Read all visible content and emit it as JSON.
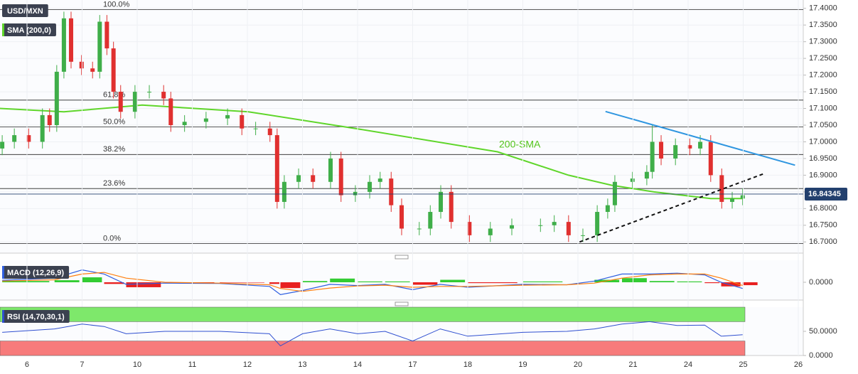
{
  "chart_data": [
    {
      "type": "candlestick",
      "title": "USD/MXN",
      "xlim": [
        -0.49,
        14.09
      ],
      "ylim": [
        16.675,
        17.425
      ],
      "yticks": [
        {
          "value": 16.7,
          "label": "16.7000"
        },
        {
          "value": 16.75,
          "label": "16.7500"
        },
        {
          "value": 16.8,
          "label": "16.8000"
        },
        {
          "value": 16.85,
          "label": "16.8500"
        },
        {
          "value": 16.9,
          "label": "16.9000"
        },
        {
          "value": 16.95,
          "label": "16.9500"
        },
        {
          "value": 17.0,
          "label": "17.0000"
        },
        {
          "value": 17.05,
          "label": "17.0500"
        },
        {
          "value": 17.1,
          "label": "17.1000"
        },
        {
          "value": 17.15,
          "label": "17.1500"
        },
        {
          "value": 17.2,
          "label": "17.2000"
        },
        {
          "value": 17.25,
          "label": "17.2500"
        },
        {
          "value": 17.3,
          "label": "17.3000"
        },
        {
          "value": 17.35,
          "label": "17.3500"
        },
        {
          "value": 17.4,
          "label": "17.4000"
        }
      ],
      "grid": true,
      "up_color": "#3fae49",
      "down_color": "#e0302f",
      "x": [
        -0.45,
        -0.23,
        0.03,
        0.28,
        0.41,
        0.54,
        0.67,
        0.8,
        0.99,
        1.19,
        1.32,
        1.45,
        1.57,
        1.7,
        1.96,
        2.22,
        2.48,
        2.61,
        2.86,
        3.25,
        3.64,
        3.9,
        4.15,
        4.41,
        4.54,
        4.67,
        4.93,
        5.19,
        5.51,
        5.7,
        5.96,
        6.22,
        6.41,
        6.61,
        6.8,
        7.12,
        7.32,
        7.51,
        7.7,
        8.03,
        8.41,
        8.8,
        9.32,
        9.57,
        9.83,
        10.09,
        10.35,
        10.54,
        10.67,
        10.99,
        11.25,
        11.35,
        11.51,
        11.77,
        12.03,
        12.22,
        12.41,
        12.61,
        12.8,
        12.99
      ],
      "open": [
        16.98,
        17.0,
        17.02,
        17.0,
        17.08,
        17.05,
        17.21,
        17.37,
        17.24,
        17.22,
        17.21,
        17.36,
        17.28,
        17.15,
        17.09,
        17.15,
        17.15,
        17.13,
        17.05,
        17.06,
        17.07,
        17.08,
        17.04,
        17.04,
        17.02,
        16.82,
        16.88,
        16.9,
        16.88,
        16.95,
        16.84,
        16.85,
        16.88,
        16.89,
        16.81,
        16.74,
        16.74,
        16.79,
        16.85,
        16.76,
        16.72,
        16.74,
        16.75,
        16.75,
        16.76,
        16.72,
        16.72,
        16.79,
        16.81,
        16.88,
        16.89,
        16.91,
        17.0,
        16.95,
        16.99,
        16.98,
        17.0,
        16.9,
        16.82,
        16.83
      ],
      "high": [
        17.02,
        17.04,
        17.04,
        17.1,
        17.1,
        17.23,
        17.39,
        17.39,
        17.26,
        17.24,
        17.38,
        17.38,
        17.3,
        17.17,
        17.17,
        17.17,
        17.17,
        17.15,
        17.08,
        17.09,
        17.1,
        17.1,
        17.06,
        17.06,
        17.04,
        16.9,
        16.92,
        16.92,
        16.97,
        16.97,
        16.87,
        16.9,
        16.91,
        16.91,
        16.83,
        16.76,
        16.81,
        16.87,
        16.87,
        16.78,
        16.76,
        16.77,
        16.77,
        16.78,
        16.78,
        16.74,
        16.81,
        16.83,
        16.9,
        16.91,
        16.93,
        17.05,
        17.02,
        17.01,
        17.01,
        17.02,
        17.02,
        16.92,
        16.85,
        16.86
      ],
      "low": [
        16.96,
        16.98,
        16.98,
        16.98,
        17.03,
        17.03,
        17.19,
        17.22,
        17.2,
        17.19,
        17.19,
        17.26,
        17.13,
        17.07,
        17.07,
        17.13,
        17.11,
        17.03,
        17.03,
        17.04,
        17.05,
        17.02,
        17.02,
        17.0,
        16.8,
        16.8,
        16.86,
        16.86,
        16.86,
        16.82,
        16.82,
        16.83,
        16.86,
        16.79,
        16.72,
        16.72,
        16.72,
        16.77,
        16.74,
        16.7,
        16.7,
        16.72,
        16.73,
        16.73,
        16.7,
        16.7,
        16.7,
        16.77,
        16.79,
        16.86,
        16.87,
        16.89,
        16.93,
        16.93,
        16.96,
        16.96,
        16.88,
        16.8,
        16.8,
        16.81
      ],
      "close": [
        17.0,
        17.02,
        17.0,
        17.08,
        17.05,
        17.21,
        17.37,
        17.24,
        17.22,
        17.21,
        17.36,
        17.28,
        17.15,
        17.09,
        17.15,
        17.15,
        17.13,
        17.05,
        17.06,
        17.07,
        17.08,
        17.04,
        17.04,
        17.02,
        16.82,
        16.88,
        16.9,
        16.88,
        16.95,
        16.84,
        16.85,
        16.88,
        16.89,
        16.81,
        16.74,
        16.74,
        16.79,
        16.85,
        16.76,
        16.72,
        16.74,
        16.75,
        16.75,
        16.76,
        16.72,
        16.72,
        16.79,
        16.81,
        16.88,
        16.89,
        16.91,
        17.0,
        16.95,
        16.99,
        16.98,
        17.0,
        16.9,
        16.82,
        16.83,
        16.84
      ],
      "series": [
        {
          "name": "SMA (200,0)",
          "color": "#5fd62a",
          "x": [
            -0.49,
            0.67,
            2.09,
            4.02,
            5.96,
            8.54,
            9.83,
            10.61,
            11.38,
            12.41,
            12.99
          ],
          "values": [
            17.1,
            17.09,
            17.11,
            17.09,
            17.04,
            16.97,
            16.9,
            16.87,
            16.85,
            16.83,
            16.83
          ]
        }
      ],
      "fib_levels": [
        {
          "value": 17.3965,
          "label": "100.0%"
        },
        {
          "value": 17.125,
          "label": "61.8%"
        },
        {
          "value": 17.045,
          "label": "50.0%"
        },
        {
          "value": 16.962,
          "label": "38.2%"
        },
        {
          "value": 16.86,
          "label": "23.6%"
        },
        {
          "value": 16.695,
          "label": "0.0%"
        }
      ],
      "trendlines": [
        {
          "color": "#2f96e0",
          "dashed": false,
          "x": [
            10.5,
            13.94
          ],
          "values": [
            17.091,
            16.93
          ]
        },
        {
          "color": "#111111",
          "dashed": true,
          "x": [
            10.03,
            13.38
          ],
          "values": [
            16.7,
            16.905
          ]
        }
      ],
      "annotation": {
        "text": "200-SMA",
        "color": "#52c41a"
      },
      "last_price": {
        "value": 16.84345,
        "label": "16.84345",
        "color": "#23406e"
      }
    },
    {
      "type": "macd",
      "title": "MACD (12,26,9)",
      "xlim": [
        -0.49,
        14.09
      ],
      "ylim": [
        -0.05,
        0.05
      ],
      "yticks": [
        {
          "value": 0,
          "label": "0.0000"
        }
      ],
      "x": [
        -0.45,
        0.5,
        1.0,
        1.4,
        1.8,
        2.5,
        3.5,
        4.4,
        4.6,
        5.0,
        5.5,
        6.0,
        6.5,
        7.0,
        7.5,
        8.0,
        9.0,
        9.8,
        10.3,
        10.8,
        11.3,
        11.8,
        12.3,
        12.6,
        12.99
      ],
      "series": [
        {
          "color": "#2f5fe0",
          "values": [
            0.005,
            0.01,
            0.03,
            0.02,
            -0.005,
            -0.002,
            -0.003,
            -0.01,
            -0.03,
            -0.02,
            -0.005,
            -0.008,
            -0.005,
            -0.018,
            -0.005,
            -0.012,
            -0.005,
            -0.006,
            0.003,
            0.02,
            0.02,
            0.022,
            0.018,
            0.0,
            -0.015
          ]
        },
        {
          "color": "#ff7f0e",
          "values": [
            0.003,
            0.006,
            0.02,
            0.024,
            0.01,
            0.0,
            -0.002,
            -0.006,
            -0.015,
            -0.022,
            -0.014,
            -0.009,
            -0.007,
            -0.012,
            -0.01,
            -0.01,
            -0.007,
            -0.006,
            -0.002,
            0.01,
            0.018,
            0.02,
            0.02,
            0.01,
            -0.008
          ]
        }
      ],
      "histogram": {
        "up_color": "#33cc33",
        "down_color": "#e82020",
        "values": [
          0.003,
          0.005,
          0.012,
          -0.004,
          -0.012,
          -0.002,
          -0.001,
          -0.004,
          -0.014,
          0.003,
          0.009,
          0.002,
          0.002,
          -0.006,
          0.006,
          -0.002,
          0.002,
          0.0,
          0.006,
          0.01,
          0.003,
          0.002,
          -0.002,
          -0.01,
          -0.007
        ]
      }
    },
    {
      "type": "rsi",
      "title": "RSI (14,70,30,1)",
      "xlim": [
        -0.49,
        14.09
      ],
      "ylim": [
        0,
        100
      ],
      "yticks": [
        {
          "value": 50,
          "label": "50.0000"
        },
        {
          "value": 0,
          "label": "0.0000"
        }
      ],
      "bands": [
        {
          "from": 70,
          "to": 100,
          "color": "#7ee86b"
        },
        {
          "from": 0,
          "to": 30,
          "color": "#f77b7b"
        }
      ],
      "x": [
        -0.45,
        0.5,
        1.0,
        1.4,
        1.8,
        2.5,
        3.5,
        4.4,
        4.6,
        5.0,
        5.5,
        6.0,
        6.5,
        7.0,
        7.5,
        8.0,
        9.0,
        9.8,
        10.3,
        10.8,
        11.3,
        11.8,
        12.3,
        12.6,
        12.99
      ],
      "series": [
        {
          "color": "#2f4fd0",
          "values": [
            48,
            55,
            65,
            60,
            45,
            50,
            50,
            45,
            20,
            45,
            55,
            45,
            50,
            30,
            55,
            40,
            48,
            50,
            55,
            65,
            70,
            62,
            63,
            40,
            43
          ]
        }
      ],
      "xticks": [
        {
          "value": 0,
          "label": "6"
        },
        {
          "value": 1,
          "label": "7"
        },
        {
          "value": 2,
          "label": "10"
        },
        {
          "value": 3,
          "label": "11"
        },
        {
          "value": 4,
          "label": "12"
        },
        {
          "value": 5,
          "label": "13"
        },
        {
          "value": 6,
          "label": "14"
        },
        {
          "value": 7,
          "label": "17"
        },
        {
          "value": 8,
          "label": "18"
        },
        {
          "value": 9,
          "label": "19"
        },
        {
          "value": 10,
          "label": "20"
        },
        {
          "value": 11,
          "label": "21"
        },
        {
          "value": 12,
          "label": "24"
        },
        {
          "value": 13,
          "label": "25"
        },
        {
          "value": 14,
          "label": "26"
        }
      ]
    }
  ]
}
